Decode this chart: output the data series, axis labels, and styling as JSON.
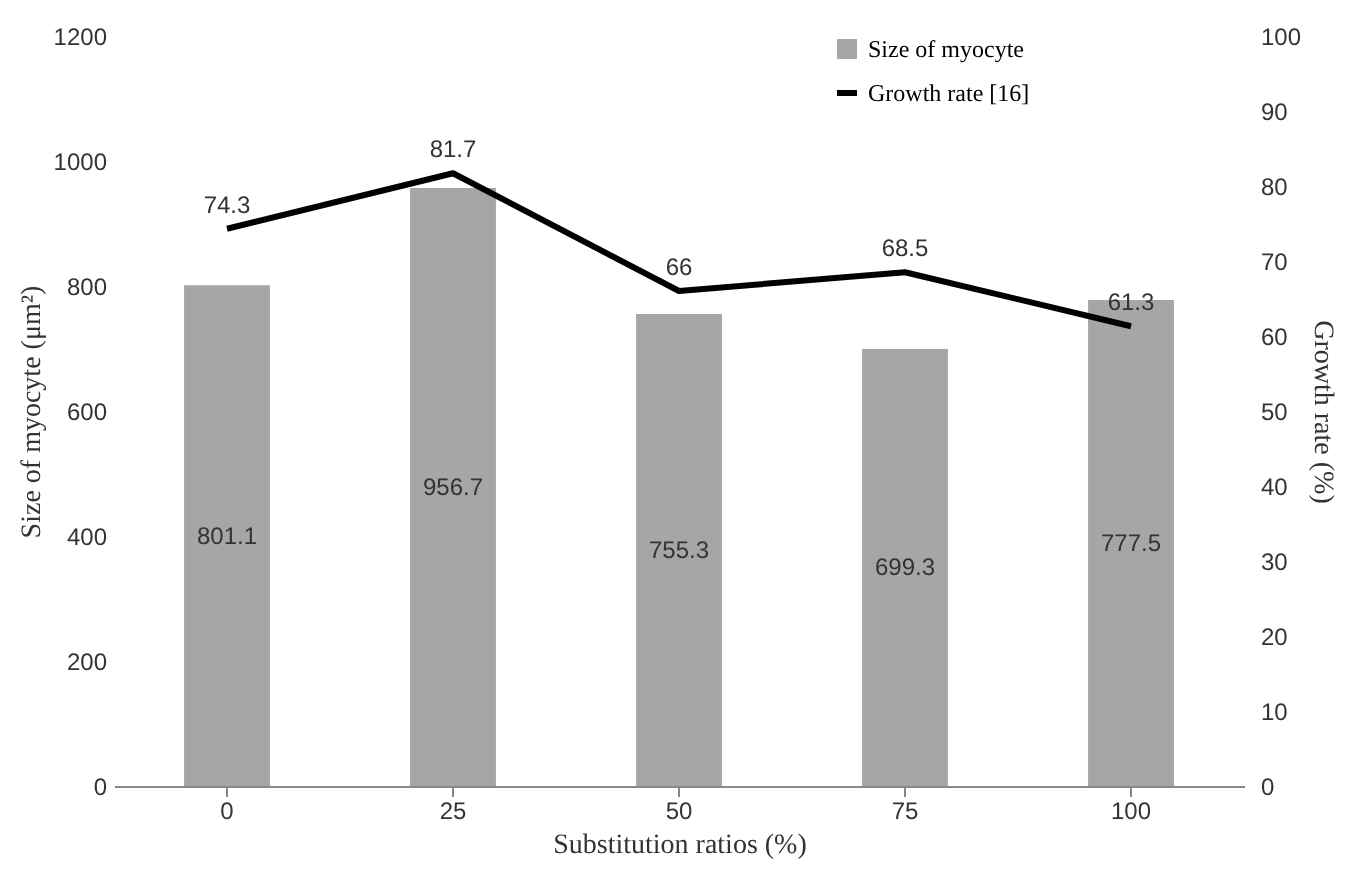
{
  "chart_data": {
    "type": "bar",
    "categories": [
      "0",
      "25",
      "50",
      "75",
      "100"
    ],
    "xlabel": "Substitution ratios (%)",
    "ylabel": "Size of myocyte (μm²)",
    "y2label": "Growth rate (%)",
    "ylim": [
      0,
      1200
    ],
    "yticks": [
      0,
      200,
      400,
      600,
      800,
      1000,
      1200
    ],
    "y2lim": [
      0,
      100
    ],
    "y2ticks": [
      0,
      10,
      20,
      30,
      40,
      50,
      60,
      70,
      80,
      90,
      100
    ],
    "series": [
      {
        "name": "Size of myocyte",
        "color": "#a6a6a6",
        "values": [
          801.1,
          956.7,
          755.3,
          699.3,
          777.5
        ]
      },
      {
        "name": "Growth rate [16]",
        "type": "line",
        "axis": "y2",
        "color": "#000000",
        "values": [
          74.3,
          81.7,
          66,
          68.5,
          61.3
        ]
      }
    ],
    "data_labels": true,
    "grid": false,
    "legend": "top right",
    "marker": "none"
  }
}
